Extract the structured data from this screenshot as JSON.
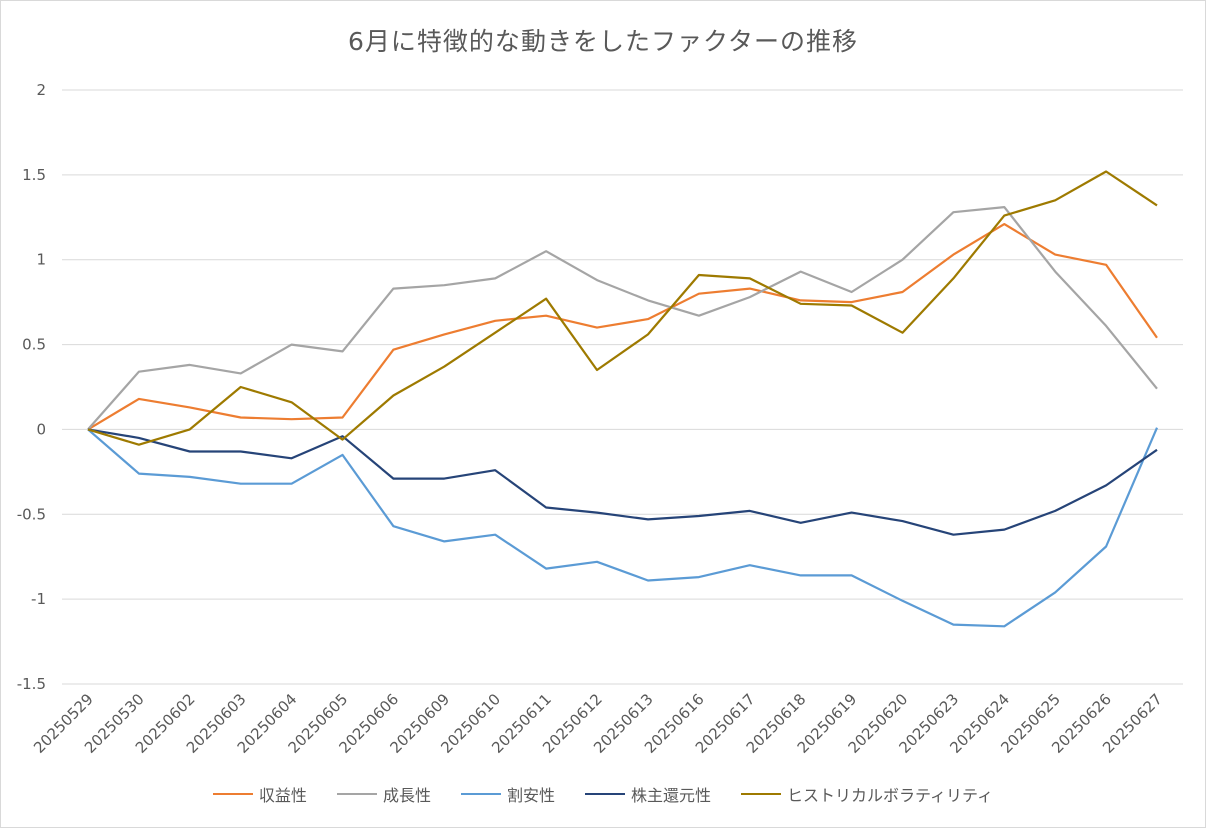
{
  "chart_data": {
    "type": "line",
    "title": "6月に特徴的な動きをしたファクターの推移",
    "xlabel": "",
    "ylabel": "",
    "ylim": [
      -1.5,
      2
    ],
    "yticks": [
      "2",
      "1.5",
      "1",
      "0.5",
      "0",
      "-0.5",
      "-1",
      "-1.5"
    ],
    "grid": true,
    "legend_position": "bottom",
    "categories": [
      "20250529",
      "20250530",
      "20250602",
      "20250603",
      "20250604",
      "20250605",
      "20250606",
      "20250609",
      "20250610",
      "20250611",
      "20250612",
      "20250613",
      "20250616",
      "20250617",
      "20250618",
      "20250619",
      "20250620",
      "20250623",
      "20250624",
      "20250625",
      "20250626",
      "20250627"
    ],
    "series": [
      {
        "name": "収益性",
        "color": "#ED7D31",
        "values": [
          0,
          0.18,
          0.13,
          0.07,
          0.06,
          0.07,
          0.47,
          0.56,
          0.64,
          0.67,
          0.6,
          0.65,
          0.8,
          0.83,
          0.76,
          0.75,
          0.81,
          1.03,
          1.21,
          1.03,
          0.97,
          0.54
        ]
      },
      {
        "name": "成長性",
        "color": "#A5A5A5",
        "values": [
          0,
          0.34,
          0.38,
          0.33,
          0.5,
          0.46,
          0.83,
          0.85,
          0.89,
          1.05,
          0.88,
          0.76,
          0.67,
          0.78,
          0.93,
          0.81,
          1.0,
          1.28,
          1.31,
          0.93,
          0.61,
          0.24
        ]
      },
      {
        "name": "割安性",
        "color": "#5B9BD5",
        "values": [
          0,
          -0.26,
          -0.28,
          -0.32,
          -0.32,
          -0.15,
          -0.57,
          -0.66,
          -0.62,
          -0.82,
          -0.78,
          -0.89,
          -0.87,
          -0.8,
          -0.86,
          -0.86,
          -1.01,
          -1.15,
          -1.16,
          -0.96,
          -0.69,
          0.01
        ]
      },
      {
        "name": "株主還元性",
        "color": "#264478",
        "values": [
          0,
          -0.05,
          -0.13,
          -0.13,
          -0.17,
          -0.04,
          -0.29,
          -0.29,
          -0.24,
          -0.46,
          -0.49,
          -0.53,
          -0.51,
          -0.48,
          -0.55,
          -0.49,
          -0.54,
          -0.62,
          -0.59,
          -0.48,
          -0.33,
          -0.12
        ]
      },
      {
        "name": "ヒストリカルボラティリティ",
        "color": "#9E7A00",
        "values": [
          0,
          -0.09,
          0,
          0.25,
          0.16,
          -0.06,
          0.2,
          0.37,
          0.57,
          0.77,
          0.35,
          0.56,
          0.91,
          0.89,
          0.74,
          0.73,
          0.57,
          0.89,
          1.26,
          1.35,
          1.52,
          1.32
        ]
      }
    ]
  }
}
